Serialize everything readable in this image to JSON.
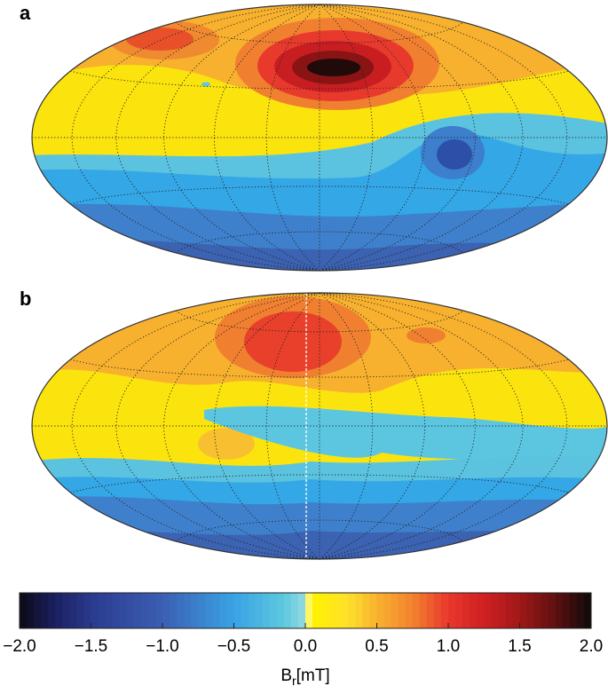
{
  "panels": [
    {
      "label": "a"
    },
    {
      "label": "b"
    }
  ],
  "colorbar": {
    "clim": [
      -2.0,
      2.0
    ],
    "ticks": [
      {
        "value": -2.0,
        "label": "−2.0"
      },
      {
        "value": -1.5,
        "label": "−1.5"
      },
      {
        "value": -1.0,
        "label": "−1.0"
      },
      {
        "value": -0.5,
        "label": "−0.5"
      },
      {
        "value": 0.0,
        "label": "0.0"
      },
      {
        "value": 0.5,
        "label": "0.5"
      },
      {
        "value": 1.0,
        "label": "1.0"
      },
      {
        "value": 1.5,
        "label": "1.5"
      },
      {
        "value": 2.0,
        "label": "2.0"
      }
    ],
    "label": {
      "base": "B",
      "subscript": "r",
      "unit": "[mT]"
    },
    "colormap": [
      {
        "value": -2.0,
        "color": "#0a0a16"
      },
      {
        "value": -1.75,
        "color": "#1b2060"
      },
      {
        "value": -1.5,
        "color": "#2a3a8e"
      },
      {
        "value": -1.0,
        "color": "#3b5fb2"
      },
      {
        "value": -0.5,
        "color": "#3aa2e4"
      },
      {
        "value": -0.15,
        "color": "#5cc8de"
      },
      {
        "value": -0.02,
        "color": "#8ed8e0"
      },
      {
        "value": 0.0,
        "color": "#fbfbd0"
      },
      {
        "value": 0.05,
        "color": "#fff200"
      },
      {
        "value": 0.3,
        "color": "#fde02a"
      },
      {
        "value": 0.5,
        "color": "#f8b22e"
      },
      {
        "value": 0.75,
        "color": "#f2822e"
      },
      {
        "value": 1.0,
        "color": "#e8382c"
      },
      {
        "value": 1.25,
        "color": "#d02022"
      },
      {
        "value": 1.5,
        "color": "#a01818"
      },
      {
        "value": 1.75,
        "color": "#5e1010"
      },
      {
        "value": 2.0,
        "color": "#0e0a0a"
      }
    ]
  }
}
